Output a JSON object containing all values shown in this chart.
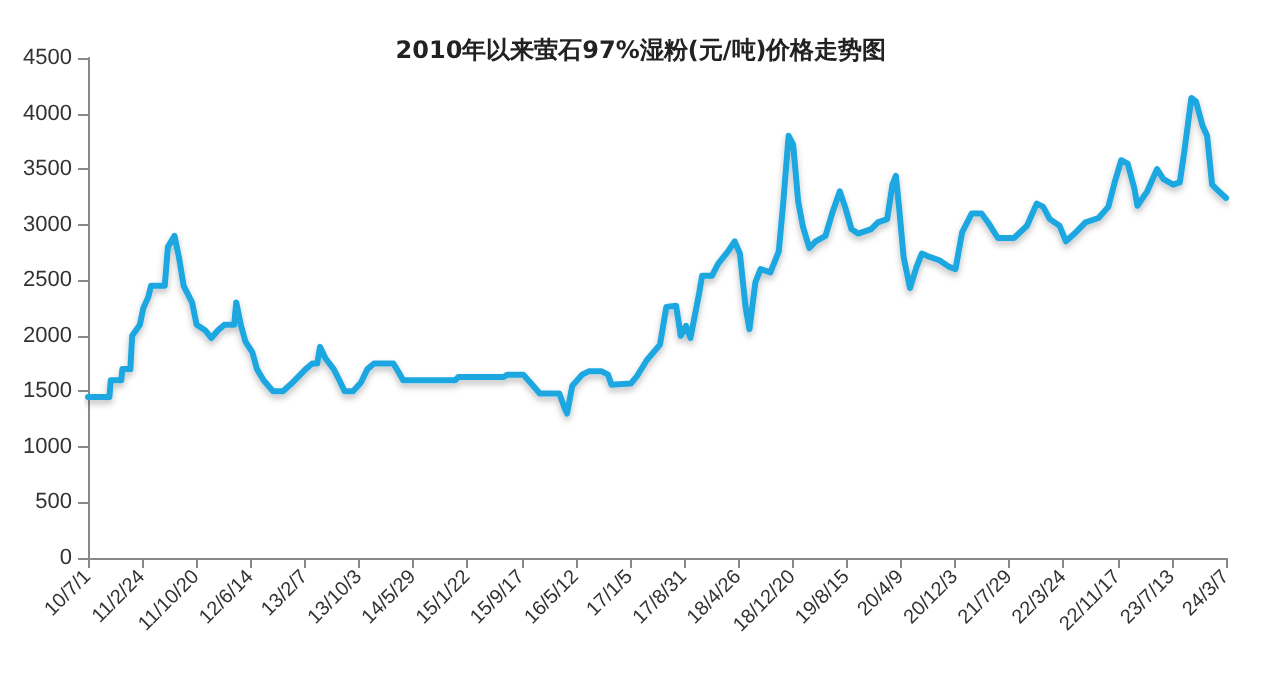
{
  "chart_data": {
    "type": "line",
    "title": "2010年以来萤石97%湿粉(元/吨)价格走势图",
    "x": [
      "2010-07-01",
      "2010-10-03",
      "2010-10-09",
      "2010-11-24",
      "2010-11-29",
      "2011-01-03",
      "2011-01-11",
      "2011-02-14",
      "2011-03-01",
      "2011-03-23",
      "2011-04-04",
      "2011-06-03",
      "2011-06-17",
      "2011-07-16",
      "2011-08-05",
      "2011-08-25",
      "2011-10-01",
      "2011-10-21",
      "2011-11-27",
      "2011-12-25",
      "2012-01-23",
      "2012-02-20",
      "2012-04-03",
      "2012-04-12",
      "2012-05-02",
      "2012-05-22",
      "2012-06-22",
      "2012-07-12",
      "2012-08-10",
      "2012-09-21",
      "2012-11-03",
      "2012-12-16",
      "2013-02-11",
      "2013-03-12",
      "2013-04-03",
      "2013-04-15",
      "2013-05-08",
      "2013-06-14",
      "2013-07-09",
      "2013-08-01",
      "2013-09-07",
      "2013-10-12",
      "2013-11-09",
      "2013-12-08",
      "2014-03-03",
      "2014-03-18",
      "2014-04-15",
      "2014-11-30",
      "2014-12-14",
      "2015-07-02",
      "2015-07-16",
      "2015-09-25",
      "2015-11-07",
      "2015-12-06",
      "2016-03-01",
      "2016-03-24",
      "2016-04-04",
      "2016-04-27",
      "2016-06-09",
      "2016-07-08",
      "2016-09-03",
      "2016-10-01",
      "2016-10-16",
      "2017-01-09",
      "2017-02-06",
      "2017-03-20",
      "2017-05-17",
      "2017-06-14",
      "2017-07-27",
      "2017-08-16",
      "2017-09-08",
      "2017-09-28",
      "2017-11-04",
      "2017-11-18",
      "2017-12-31",
      "2018-01-28",
      "2018-03-12",
      "2018-04-10",
      "2018-05-03",
      "2018-05-28",
      "2018-06-14",
      "2018-07-10",
      "2018-08-02",
      "2018-09-14",
      "2018-10-21",
      "2018-11-10",
      "2018-12-03",
      "2018-12-23",
      "2019-01-14",
      "2019-02-03",
      "2019-03-04",
      "2019-04-01",
      "2019-05-14",
      "2019-06-12",
      "2019-07-16",
      "2019-08-08",
      "2019-09-05",
      "2019-10-04",
      "2019-12-01",
      "2019-12-30",
      "2020-02-09",
      "2020-03-03",
      "2020-03-18",
      "2020-04-01",
      "2020-04-21",
      "2020-05-19",
      "2020-06-17",
      "2020-07-10",
      "2020-08-13",
      "2020-09-25",
      "2020-11-07",
      "2020-12-05",
      "2021-01-03",
      "2021-02-14",
      "2021-03-29",
      "2021-04-27",
      "2021-06-09",
      "2021-08-19",
      "2021-10-15",
      "2021-11-27",
      "2021-12-25",
      "2022-01-23",
      "2022-03-07",
      "2022-04-04",
      "2022-05-17",
      "2022-06-29",
      "2022-08-25",
      "2022-10-07",
      "2022-11-04",
      "2022-12-03",
      "2022-12-31",
      "2023-01-29",
      "2023-02-12",
      "2023-03-27",
      "2023-05-09",
      "2023-06-06",
      "2023-07-19",
      "2023-08-17",
      "2023-09-06",
      "2023-10-07",
      "2023-10-27",
      "2023-11-25",
      "2023-12-15",
      "2024-01-06",
      "2024-02-04",
      "2024-03-07"
    ],
    "series": [
      {
        "color": "#1ea7e1",
        "values": [
          1450,
          1450,
          1600,
          1600,
          1700,
          1700,
          2000,
          2100,
          2250,
          2350,
          2450,
          2450,
          2800,
          2900,
          2700,
          2450,
          2300,
          2100,
          2050,
          1980,
          2050,
          2100,
          2100,
          2300,
          2100,
          1950,
          1850,
          1700,
          1600,
          1500,
          1500,
          1580,
          1700,
          1750,
          1750,
          1900,
          1800,
          1700,
          1600,
          1500,
          1500,
          1580,
          1700,
          1750,
          1750,
          1700,
          1600,
          1600,
          1630,
          1630,
          1650,
          1650,
          1550,
          1480,
          1480,
          1350,
          1300,
          1550,
          1650,
          1680,
          1680,
          1650,
          1560,
          1570,
          1640,
          1780,
          1920,
          2260,
          2270,
          2000,
          2090,
          1980,
          2370,
          2540,
          2540,
          2650,
          2760,
          2850,
          2740,
          2260,
          2060,
          2480,
          2600,
          2570,
          2760,
          3210,
          3800,
          3720,
          3210,
          2990,
          2790,
          2850,
          2900,
          3100,
          3300,
          3160,
          2960,
          2920,
          2960,
          3020,
          3050,
          3360,
          3440,
          3160,
          2710,
          2430,
          2620,
          2740,
          2710,
          2680,
          2620,
          2600,
          2930,
          3100,
          3100,
          3020,
          2880,
          2880,
          2990,
          3190,
          3160,
          3050,
          2990,
          2850,
          2930,
          3020,
          3060,
          3160,
          3380,
          3580,
          3550,
          3330,
          3170,
          3300,
          3500,
          3410,
          3360,
          3380,
          3660,
          4140,
          4110,
          3890,
          3800,
          3360,
          3300,
          3240
        ]
      }
    ],
    "xlim": [
      "2010-07-01",
      "2024-03-07"
    ],
    "xticks": [
      {
        "value": "2010-07-01",
        "label": "10/7/1"
      },
      {
        "value": "2011-02-24",
        "label": "11/2/24"
      },
      {
        "value": "2011-10-20",
        "label": "11/10/20"
      },
      {
        "value": "2012-06-14",
        "label": "12/6/14"
      },
      {
        "value": "2013-02-07",
        "label": "13/2/7"
      },
      {
        "value": "2013-10-03",
        "label": "13/10/3"
      },
      {
        "value": "2014-05-29",
        "label": "14/5/29"
      },
      {
        "value": "2015-01-22",
        "label": "15/1/22"
      },
      {
        "value": "2015-09-17",
        "label": "15/9/17"
      },
      {
        "value": "2016-05-12",
        "label": "16/5/12"
      },
      {
        "value": "2017-01-05",
        "label": "17/1/5"
      },
      {
        "value": "2017-08-31",
        "label": "17/8/31"
      },
      {
        "value": "2018-04-26",
        "label": "18/4/26"
      },
      {
        "value": "2018-12-20",
        "label": "18/12/20"
      },
      {
        "value": "2019-08-15",
        "label": "19/8/15"
      },
      {
        "value": "2020-04-09",
        "label": "20/4/9"
      },
      {
        "value": "2020-12-03",
        "label": "20/12/3"
      },
      {
        "value": "2021-07-29",
        "label": "21/7/29"
      },
      {
        "value": "2022-03-24",
        "label": "22/3/24"
      },
      {
        "value": "2022-11-17",
        "label": "22/11/17"
      },
      {
        "value": "2023-07-13",
        "label": "23/7/13"
      },
      {
        "value": "2024-03-07",
        "label": "24/3/7"
      }
    ],
    "ylim": [
      0,
      4500
    ],
    "yticks": [
      0,
      500,
      1000,
      1500,
      2000,
      2500,
      3000,
      3500,
      4000,
      4500
    ],
    "grid": false,
    "marker": "none",
    "line_style": "solid"
  }
}
